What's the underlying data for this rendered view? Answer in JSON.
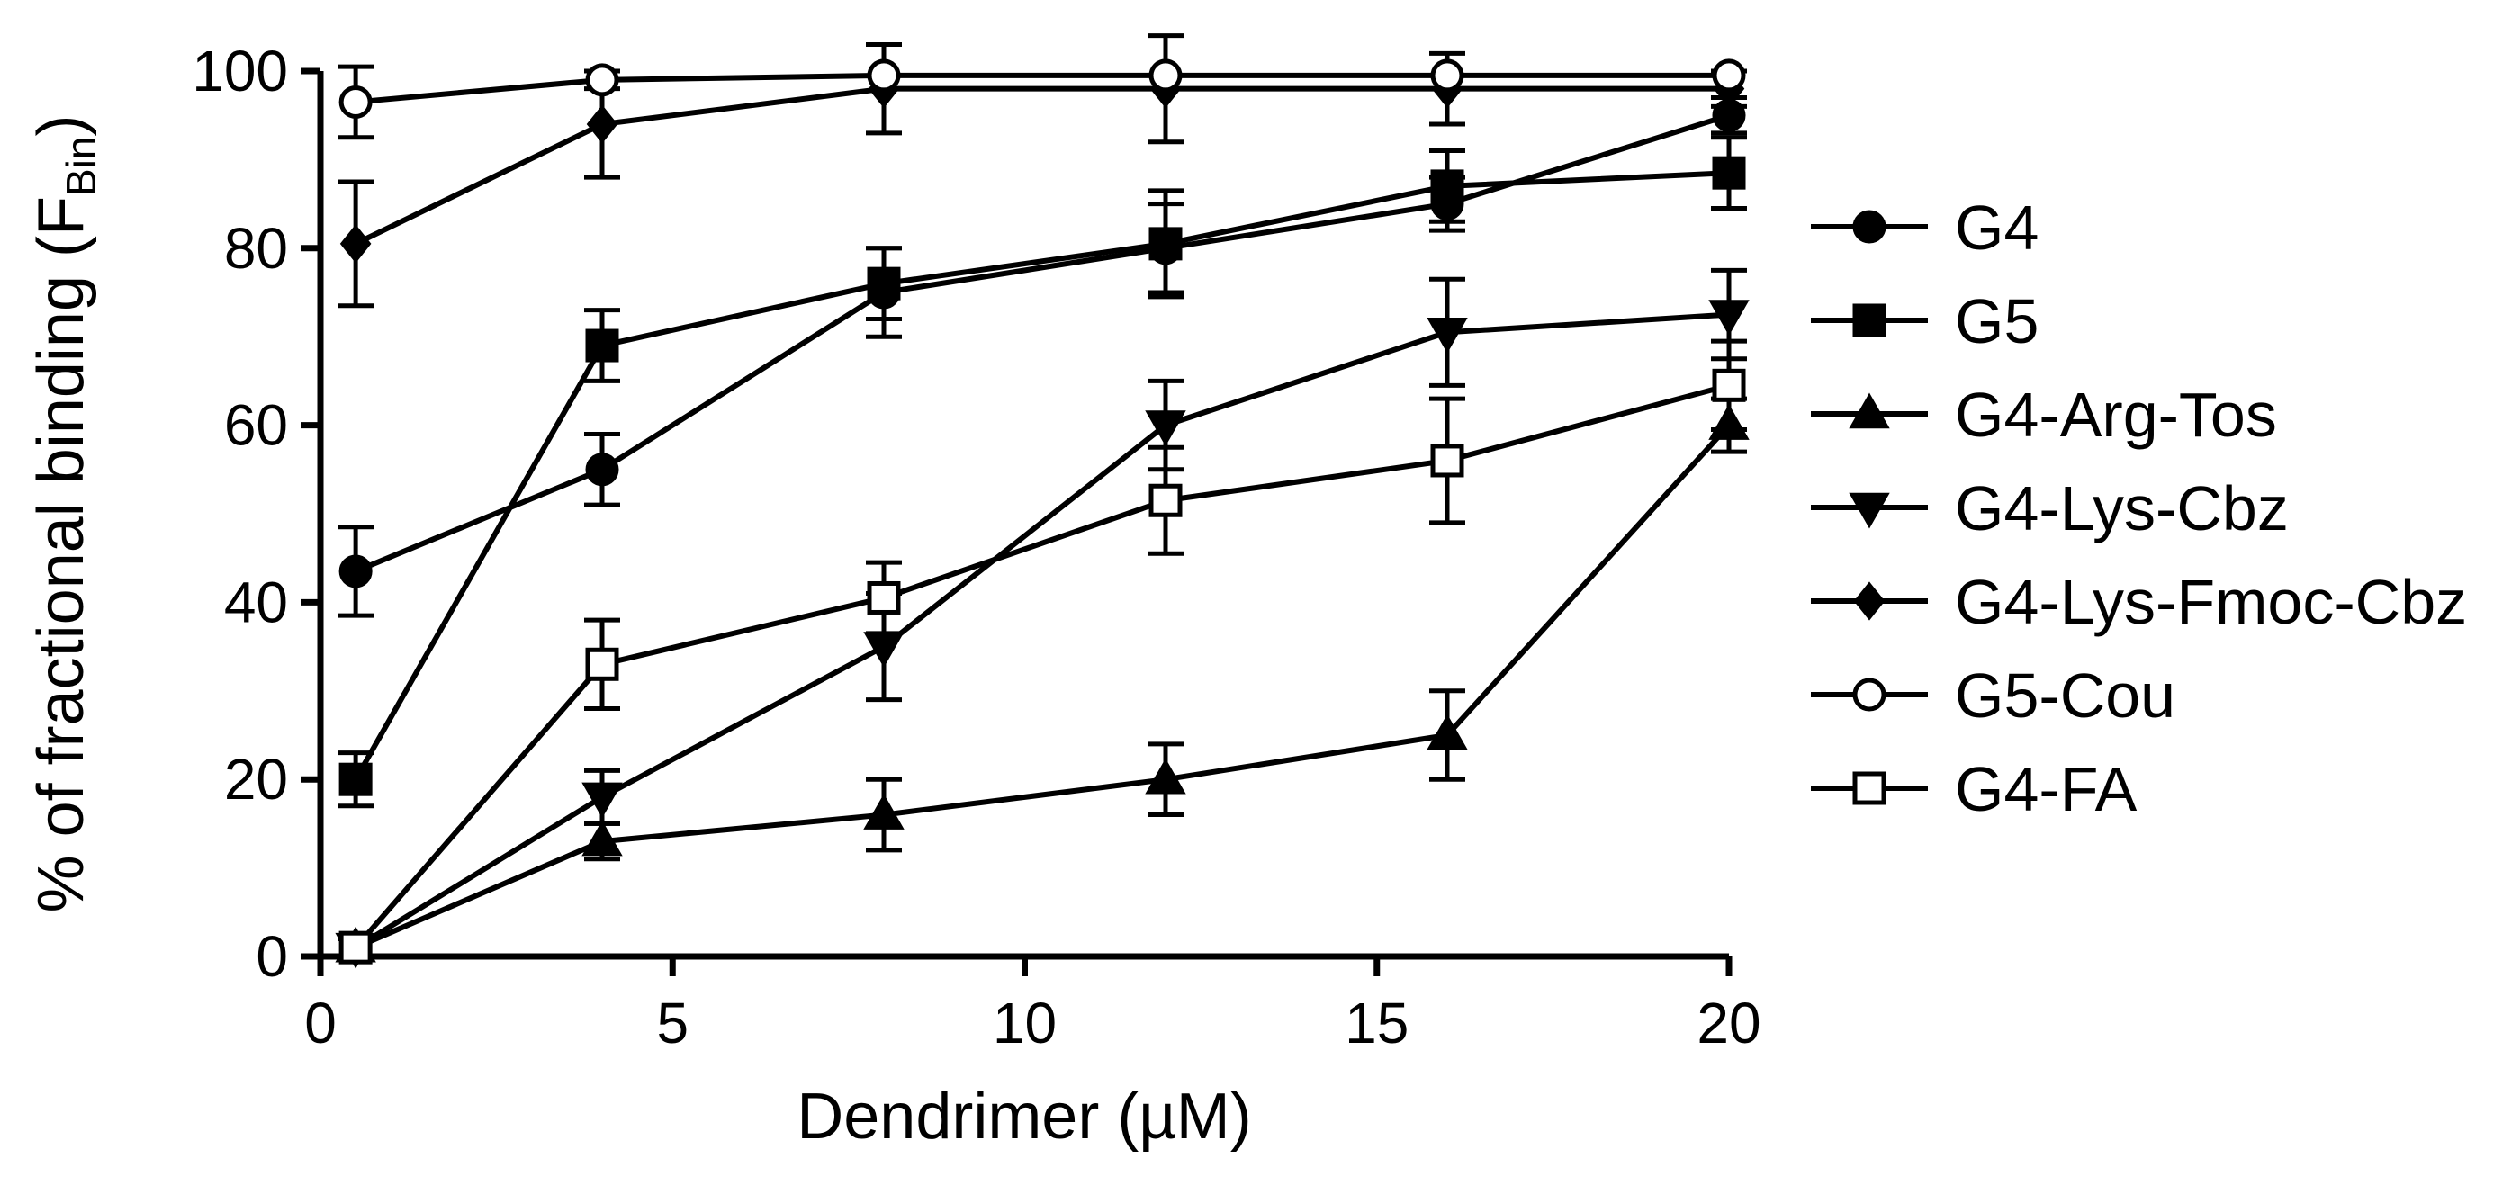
{
  "chart_data": {
    "type": "line",
    "title": "",
    "xlabel": "Dendrimer (µM)",
    "ylabel_main": "% of fractional binding (F",
    "ylabel_sub": "Bin",
    "ylabel_end": ")",
    "xlim": [
      0,
      20
    ],
    "ylim": [
      0,
      100
    ],
    "x_ticks": [
      "0",
      "5",
      "10",
      "15",
      "20"
    ],
    "y_ticks": [
      "0",
      "20",
      "40",
      "60",
      "80",
      "100"
    ],
    "grid": false,
    "legend_position": "right",
    "x": [
      0.5,
      4,
      8,
      12,
      16,
      20
    ],
    "series": [
      {
        "name": "G4",
        "marker": "circle-filled",
        "values": [
          43.5,
          55,
          75,
          80,
          85,
          95
        ],
        "errors": [
          5,
          4,
          5,
          5,
          3,
          2
        ]
      },
      {
        "name": "G5",
        "marker": "square-filled",
        "values": [
          20,
          69,
          76,
          80.5,
          87,
          88.5
        ],
        "errors": [
          3,
          4,
          4,
          6,
          4,
          4
        ]
      },
      {
        "name": "G4-Arg-Tos",
        "marker": "triangle-up-filled",
        "values": [
          1,
          13,
          16,
          20,
          25,
          60
        ],
        "errors": [
          1,
          2,
          4,
          4,
          5,
          3
        ]
      },
      {
        "name": "G4-Lys-Cbz",
        "marker": "triangle-down-filled",
        "values": [
          1,
          18,
          35,
          60,
          70.5,
          72.5
        ],
        "errors": [
          1,
          3,
          6,
          5,
          6,
          5
        ]
      },
      {
        "name": "G4-Lys-Fmoc-Cbz",
        "marker": "diamond-filled",
        "values": [
          80.5,
          94,
          98,
          98,
          98,
          98
        ],
        "errors": [
          7,
          6,
          5,
          6,
          4,
          2
        ]
      },
      {
        "name": "G5-Cou",
        "marker": "circle-open",
        "values": [
          96.5,
          99,
          99.5,
          99.5,
          99.5,
          99.5
        ],
        "errors": [
          4,
          1,
          0.5,
          0.5,
          0.5,
          0.5
        ]
      },
      {
        "name": "G4-FA",
        "marker": "square-open",
        "values": [
          1,
          33,
          40.5,
          51.5,
          56,
          64.5
        ],
        "errors": [
          1,
          5,
          4,
          6,
          7,
          5
        ]
      }
    ]
  }
}
